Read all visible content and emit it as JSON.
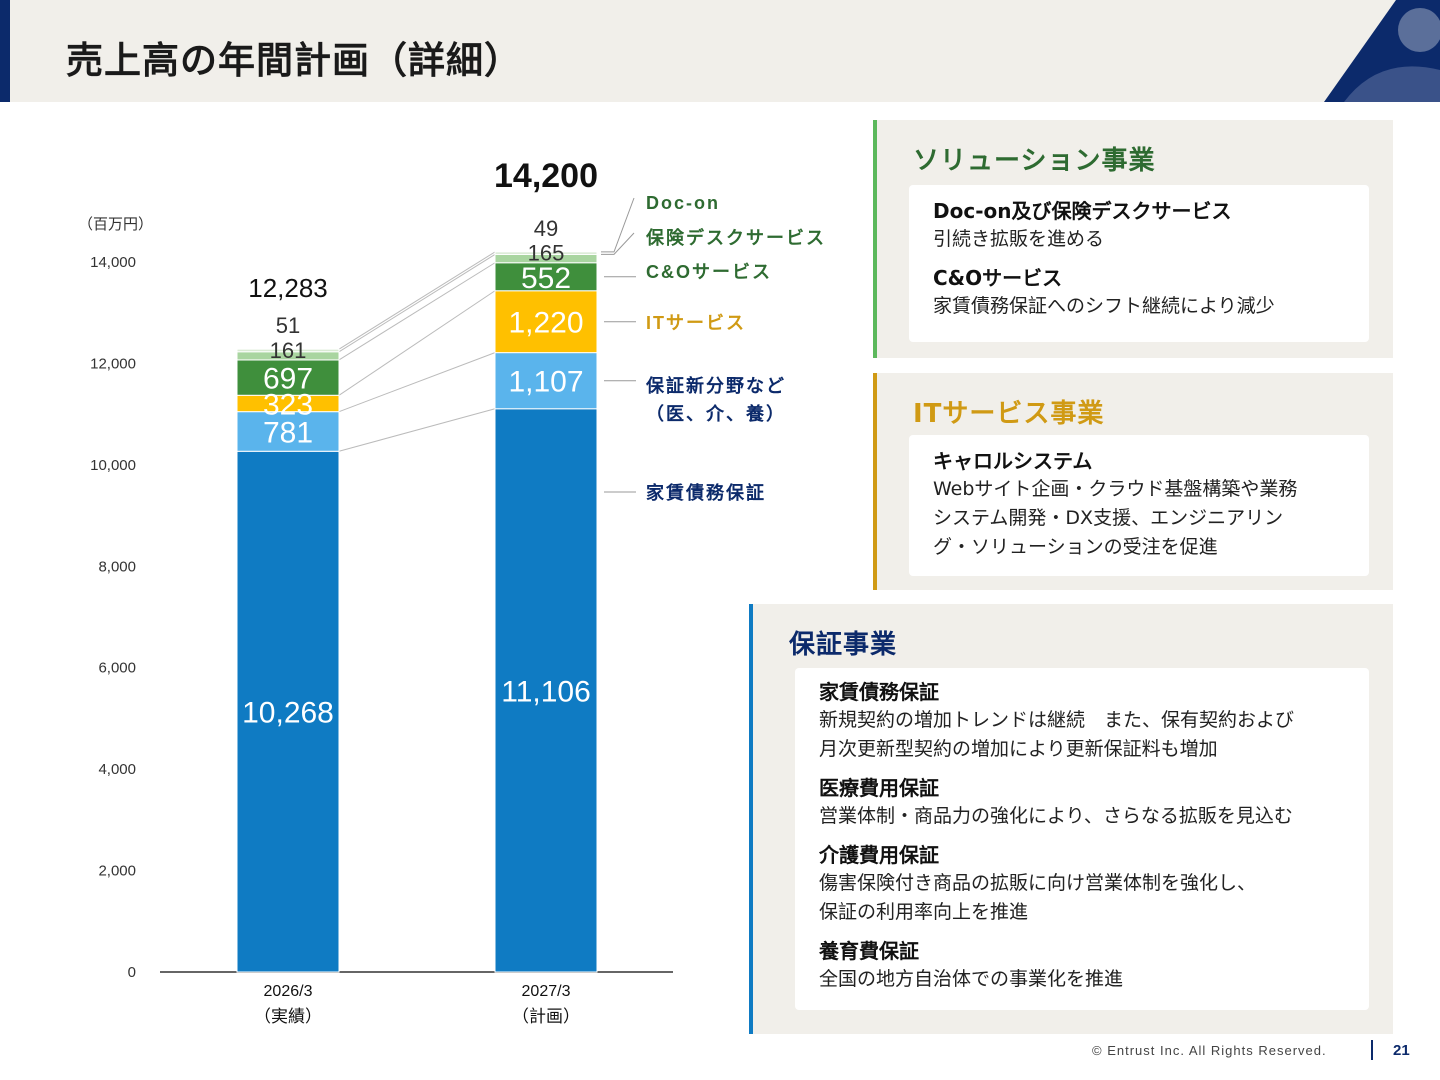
{
  "header": {
    "title": "売上高の年間計画（詳細）"
  },
  "colors": {
    "navy": "#0c2a6b",
    "rent_guarantee": "#0f7bc3",
    "new_fields": "#5ab4ec",
    "it_service": "#ffc000",
    "co_service": "#3f8f3c",
    "insurance_desk": "#a9d5a0",
    "doc_on": "#d9ead3",
    "solution_green": "#2e6b31",
    "it_gold": "#d09a14",
    "guarantee_blue": "#0c2a6b"
  },
  "chart_data": {
    "type": "bar",
    "stacked": true,
    "unit_label": "（百万円）",
    "ylim": [
      0,
      14000
    ],
    "y_ticks": [
      "0",
      "2,000",
      "4,000",
      "6,000",
      "8,000",
      "10,000",
      "12,000",
      "14,000"
    ],
    "categories": [
      "2026/3",
      "2027/3"
    ],
    "category_sublabels": [
      "（実績）",
      "（計画）"
    ],
    "totals": [
      12283,
      14200
    ],
    "total_labels": [
      "12,283",
      "14,200"
    ],
    "series": [
      {
        "name": "家賃債務保証",
        "values": [
          10268,
          11106
        ],
        "value_labels": [
          "10,268",
          "11,106"
        ],
        "color": "#0f7bc3",
        "label_color": "#ffffff"
      },
      {
        "name": "保証新分野など\n（医、介、養）",
        "values": [
          781,
          1107
        ],
        "value_labels": [
          "781",
          "1,107"
        ],
        "color": "#5ab4ec",
        "label_color": "#ffffff"
      },
      {
        "name": "ITサービス",
        "values": [
          323,
          1220
        ],
        "value_labels": [
          "323",
          "1,220"
        ],
        "color": "#ffc000",
        "label_color": "#ffffff"
      },
      {
        "name": "C&Oサービス",
        "values": [
          697,
          552
        ],
        "value_labels": [
          "697",
          "552"
        ],
        "color": "#3f8f3c",
        "label_color": "#ffffff"
      },
      {
        "name": "保険デスクサービス",
        "values": [
          161,
          165
        ],
        "value_labels": [
          "161",
          "165"
        ],
        "color": "#a9d5a0",
        "label_color": "#333333"
      },
      {
        "name": "Doc-on",
        "values": [
          51,
          49
        ],
        "value_labels": [
          "51",
          "49"
        ],
        "color": "#d9ead3",
        "label_color": "#333333"
      }
    ],
    "legend_colors": [
      "#0c2a6b",
      "#0c2a6b",
      "#d09a14",
      "#2e6b31",
      "#2e6b31",
      "#2e6b31"
    ]
  },
  "panels": {
    "solution": {
      "heading": "ソリューション事業",
      "items": [
        {
          "title": "Doc-on及び保険デスクサービス",
          "desc": "引続き拡販を進める"
        },
        {
          "title": "C&Oサービス",
          "desc": "家賃債務保証へのシフト継続により減少"
        }
      ]
    },
    "it": {
      "heading": "ITサービス事業",
      "items": [
        {
          "title": "キャロルシステム",
          "desc": "Webサイト企画・クラウド基盤構築や業務\nシステム開発・DX支援、エンジニアリン\nグ・ソリューションの受注を促進"
        }
      ]
    },
    "guarantee": {
      "heading": "保証事業",
      "items": [
        {
          "title": "家賃債務保証",
          "desc": "新規契約の増加トレンドは継続　また、保有契約および\n月次更新型契約の増加により更新保証料も増加"
        },
        {
          "title": "医療費用保証",
          "desc": "営業体制・商品力の強化により、さらなる拡販を見込む"
        },
        {
          "title": "介護費用保証",
          "desc": "傷害保険付き商品の拡販に向け営業体制を強化し、\n保証の利用率向上を推進"
        },
        {
          "title": "養育費保証",
          "desc": "全国の地方自治体での事業化を推進"
        }
      ]
    }
  },
  "footer": {
    "copyright": "© Entrust Inc. All Rights Reserved.",
    "page": "21"
  }
}
